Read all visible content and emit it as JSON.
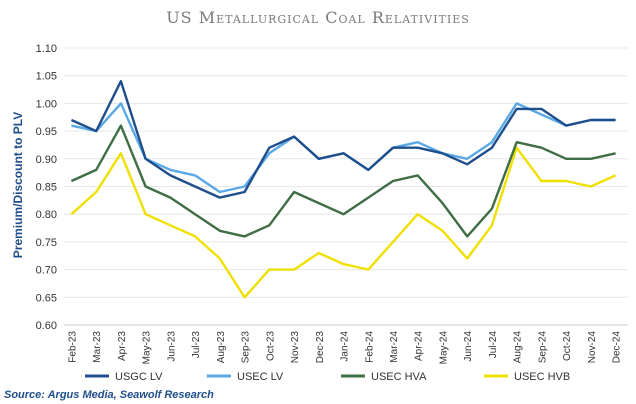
{
  "chart_data": {
    "type": "line",
    "title": "US Metallurgical Coal Relativities",
    "ylabel": "Premium/Discount to PLV",
    "xlabel": "",
    "ylim": [
      0.6,
      1.1
    ],
    "yticks": [
      "0.60",
      "0.65",
      "0.70",
      "0.75",
      "0.80",
      "0.85",
      "0.90",
      "0.95",
      "1.00",
      "1.05",
      "1.10"
    ],
    "x_ticks": [
      "Feb-23",
      "Mar-23",
      "Apr-23",
      "May-23",
      "Jun-23",
      "Jul-23",
      "Aug-23",
      "Sep-23",
      "Oct-23",
      "Nov-23",
      "Dec-23",
      "Jan-24",
      "Feb-24",
      "Mar-24",
      "Apr-24",
      "May-24",
      "Jun-24",
      "Jul-24",
      "Aug-24",
      "Sep-24",
      "Oct-24",
      "Nov-24",
      "Dec-24"
    ],
    "x": [
      "Feb-23",
      "Mar-23",
      "Apr-23",
      "May-23",
      "Jun-23",
      "Jul-23",
      "Aug-23",
      "Sep-23",
      "Oct-23",
      "Nov-23",
      "Dec-23",
      "Jan-24",
      "Feb-24",
      "Mar-24",
      "Apr-24",
      "May-24",
      "Jun-24",
      "Jul-24",
      "Aug-24",
      "Sep-24",
      "Oct-24",
      "Nov-24",
      "Dec-24"
    ],
    "grid": true,
    "legend_position": "bottom",
    "series": [
      {
        "name": "USGC LV",
        "color": "#1f4e8c",
        "values": [
          0.97,
          0.95,
          1.04,
          0.9,
          0.87,
          0.85,
          0.83,
          0.84,
          0.92,
          0.94,
          0.9,
          0.91,
          0.88,
          0.92,
          0.92,
          0.91,
          0.89,
          0.92,
          0.99,
          0.99,
          0.96,
          0.97,
          0.97
        ]
      },
      {
        "name": "USEC LV",
        "color": "#5aa9e6",
        "values": [
          0.96,
          0.95,
          1.0,
          0.9,
          0.88,
          0.87,
          0.84,
          0.85,
          0.91,
          0.94,
          0.9,
          0.91,
          0.88,
          0.92,
          0.93,
          0.91,
          0.9,
          0.93,
          1.0,
          0.98,
          0.96,
          0.97,
          0.97
        ]
      },
      {
        "name": "USEC HVA",
        "color": "#3f6e45",
        "values": [
          0.86,
          0.88,
          0.96,
          0.85,
          0.83,
          0.8,
          0.77,
          0.76,
          0.78,
          0.84,
          0.82,
          0.8,
          0.83,
          0.86,
          0.87,
          0.82,
          0.76,
          0.81,
          0.93,
          0.92,
          0.9,
          0.9,
          0.91
        ]
      },
      {
        "name": "USEC HVB",
        "color": "#f0e000",
        "values": [
          0.8,
          0.84,
          0.91,
          0.8,
          0.78,
          0.76,
          0.72,
          0.65,
          0.7,
          0.7,
          0.73,
          0.71,
          0.7,
          0.75,
          0.8,
          0.77,
          0.72,
          0.78,
          0.92,
          0.86,
          0.86,
          0.85,
          0.87
        ]
      }
    ],
    "source": "Source: Argus Media, Seawolf Research"
  }
}
